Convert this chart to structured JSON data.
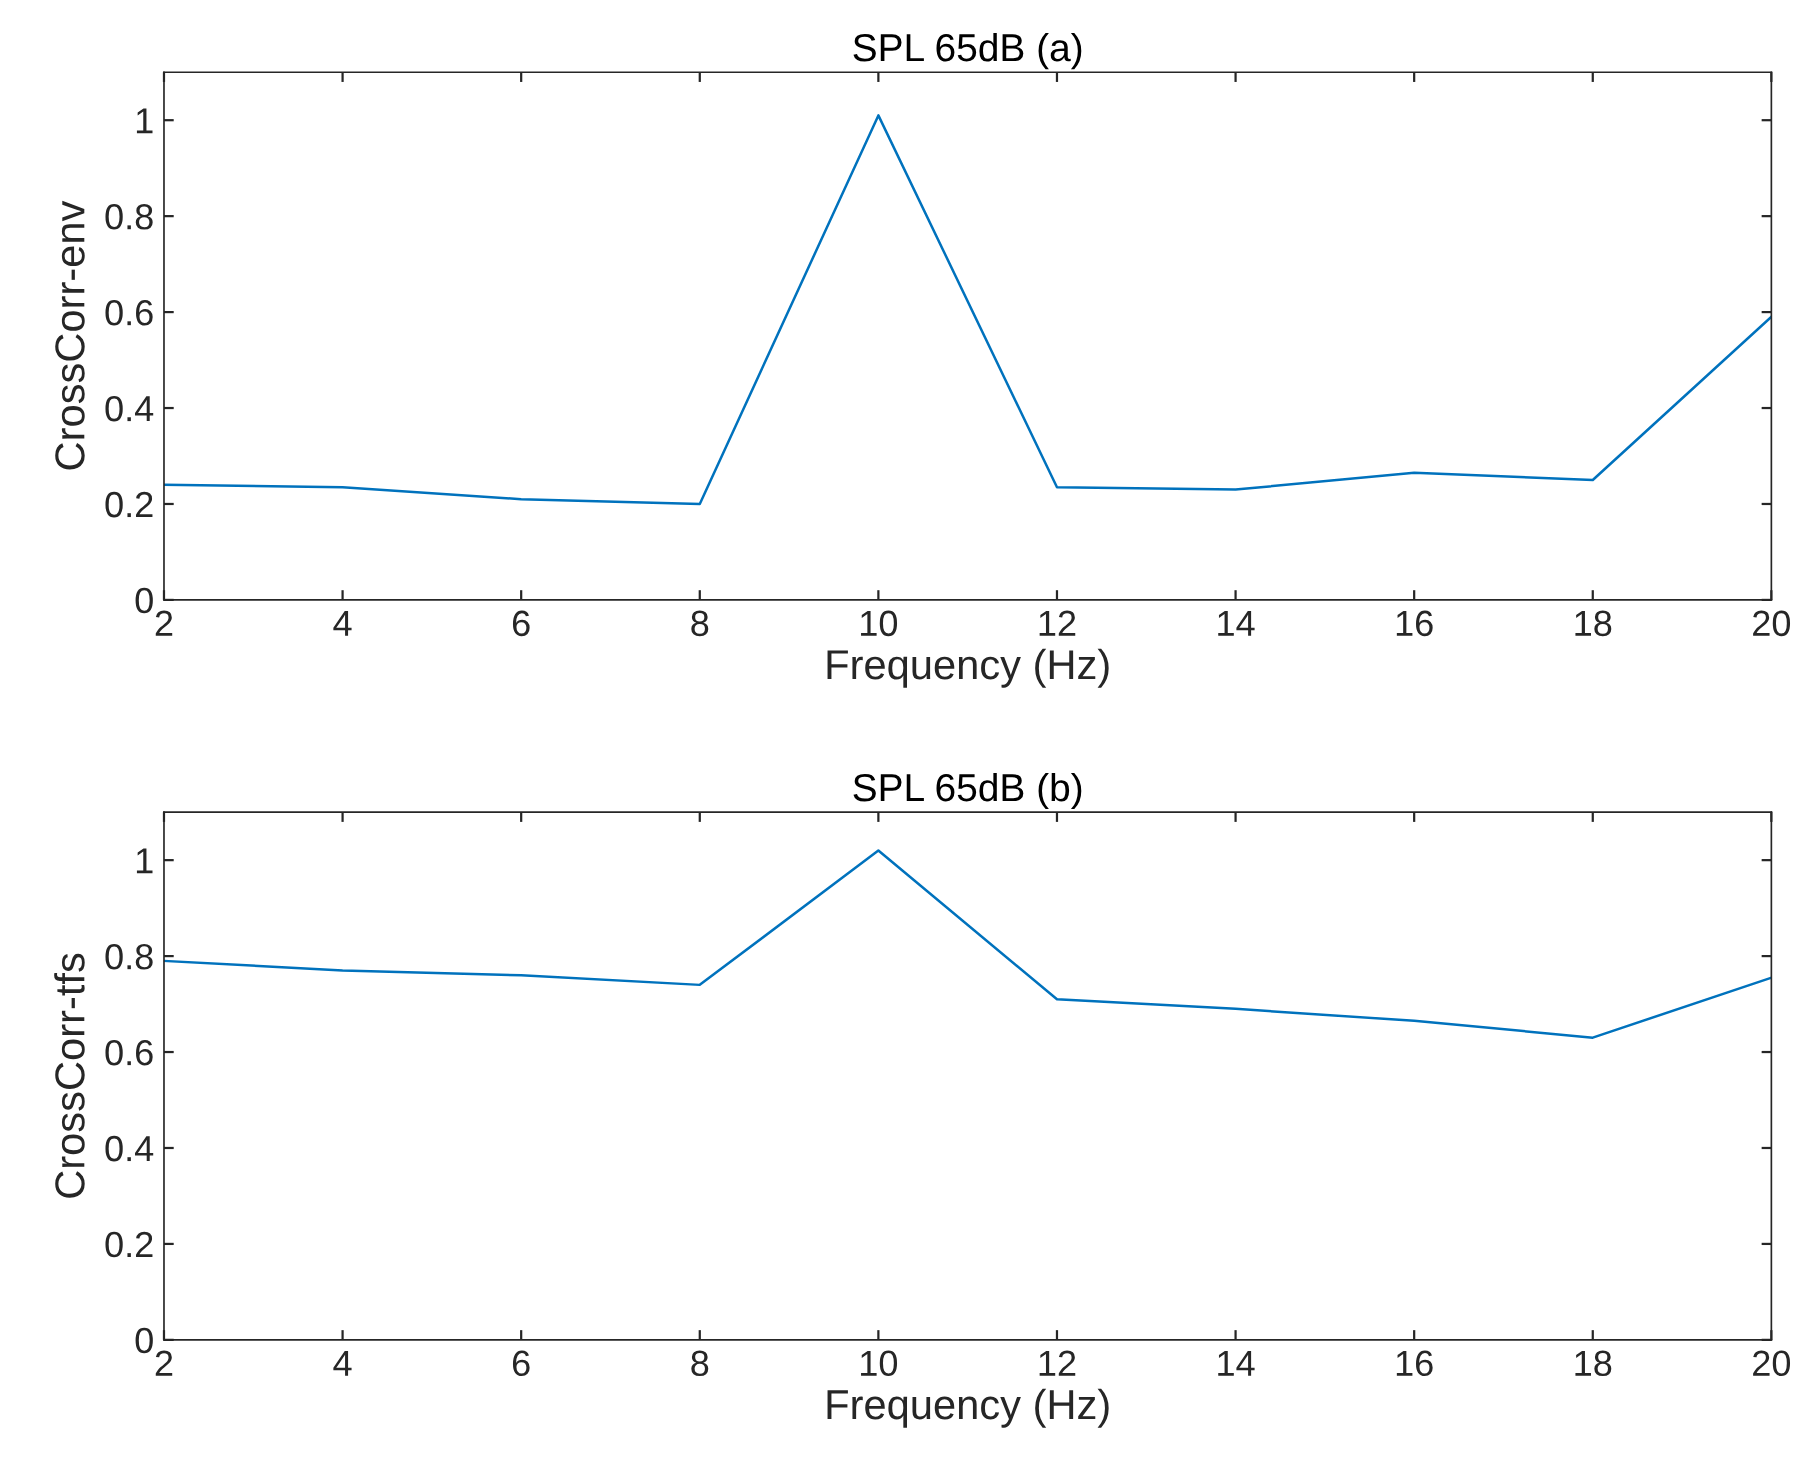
{
  "chart_data": [
    {
      "type": "line",
      "title": "SPL 65dB (a)",
      "xlabel": "Frequency (Hz)",
      "ylabel": "CrossCorr-env",
      "x": [
        2,
        4,
        6,
        8,
        10,
        12,
        14,
        16,
        18,
        20
      ],
      "series": [
        {
          "color": "#0072bd",
          "values": [
            0.24,
            0.235,
            0.21,
            0.2,
            1.01,
            0.235,
            0.23,
            0.265,
            0.25,
            0.59
          ]
        }
      ],
      "xlim": [
        2,
        20
      ],
      "xticks": [
        2,
        4,
        6,
        8,
        10,
        12,
        14,
        16,
        18,
        20
      ],
      "ylim": [
        0,
        1.1
      ],
      "yticks": [
        0,
        0.2,
        0.4,
        0.6,
        0.8,
        1
      ],
      "grid": false
    },
    {
      "type": "line",
      "title": "SPL 65dB (b)",
      "xlabel": "Frequency (Hz)",
      "ylabel": "CrossCorr-tfs",
      "x": [
        2,
        4,
        6,
        8,
        10,
        12,
        14,
        16,
        18,
        20
      ],
      "series": [
        {
          "color": "#0072bd",
          "values": [
            0.79,
            0.77,
            0.76,
            0.74,
            1.02,
            0.71,
            0.69,
            0.665,
            0.63,
            0.755
          ]
        }
      ],
      "xlim": [
        2,
        20
      ],
      "xticks": [
        2,
        4,
        6,
        8,
        10,
        12,
        14,
        16,
        18,
        20
      ],
      "ylim": [
        0,
        1.1
      ],
      "yticks": [
        0,
        0.2,
        0.4,
        0.6,
        0.8,
        1
      ],
      "grid": false
    }
  ]
}
